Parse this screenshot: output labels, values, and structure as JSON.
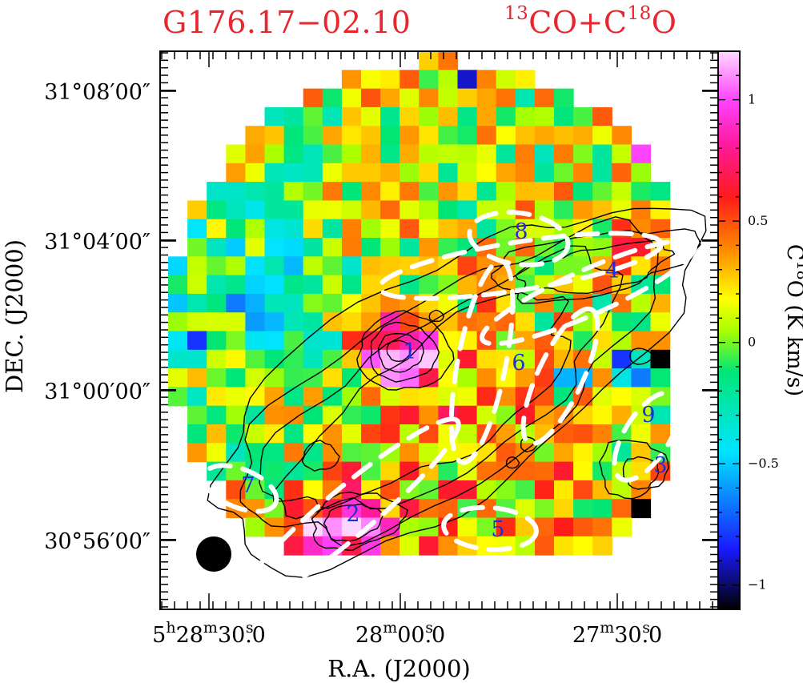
{
  "title": {
    "source": "G176.17−02.10",
    "tracer_parts": [
      "13",
      "CO+C",
      "18",
      "O"
    ]
  },
  "axes": {
    "xlabel": "R.A.  (J2000)",
    "ylabel": "DEC.  (J2000)",
    "x_ticks": [
      {
        "h": "5",
        "m": "28",
        "s": "30",
        "frac": "0",
        "show_h": true
      },
      {
        "h": "",
        "m": "28",
        "s": "00",
        "frac": "0",
        "show_h": false
      },
      {
        "h": "",
        "m": "27",
        "s": "30",
        "frac": "0",
        "show_h": false
      }
    ],
    "y_ticks": [
      "31°08′00″",
      "31°04′00″",
      "31°00′00″",
      "30°56′00″"
    ]
  },
  "colorbar": {
    "label_parts": [
      "C",
      "18",
      "O  (K km/s)"
    ],
    "ticks": [
      "1",
      "0.5",
      "0",
      "−0.5",
      "−1"
    ],
    "ticks_values": [
      1,
      0.5,
      0,
      -0.5,
      -1
    ],
    "range": [
      -1.1,
      1.2
    ],
    "stops": [
      {
        "v": -1.1,
        "c": "#000000"
      },
      {
        "v": -0.85,
        "c": "#1a1aff"
      },
      {
        "v": -0.45,
        "c": "#00e5ff"
      },
      {
        "v": -0.12,
        "c": "#00e676"
      },
      {
        "v": 0.05,
        "c": "#aaff00"
      },
      {
        "v": 0.18,
        "c": "#ffff00"
      },
      {
        "v": 0.38,
        "c": "#ff8c00"
      },
      {
        "v": 0.6,
        "c": "#ff1a1a"
      },
      {
        "v": 0.82,
        "c": "#ff1aa0"
      },
      {
        "v": 1.0,
        "c": "#ff44ff"
      },
      {
        "v": 1.2,
        "c": "#ffd8ff"
      }
    ]
  },
  "chart_data": {
    "type": "heatmap",
    "title": "G176.17−02.10    13CO+C18O",
    "xlabel": "R.A.  (J2000)",
    "ylabel": "DEC.  (J2000)",
    "x_ticks": [
      "5h28m30s.0",
      "28m00s.0",
      "27m30s.0"
    ],
    "y_ticks": [
      "31°08′00″",
      "31°04′00″",
      "31°00′00″",
      "30°56′00″"
    ],
    "colorbar_label": "C18O (K km/s)",
    "colorbar_range": [
      -1.1,
      1.2
    ],
    "colorbar_ticks": [
      1,
      0.5,
      0,
      -0.5,
      -1
    ],
    "grid_cols": 26,
    "grid_rows": 27,
    "grid_footprint": "circular",
    "peak_value": 1.15,
    "contours": "13CO integrated intensity (black)",
    "ellipses": "filament boundaries (white dashed)",
    "labels": [
      "1",
      "2",
      "3",
      "4",
      "5",
      "6",
      "7",
      "8",
      "9"
    ],
    "beam": "filled black circle, lower-left"
  },
  "colors": {
    "title": "#e8262e",
    "feature_label": "#1f2fd8",
    "contour": "#000000",
    "ellipse": "#ffffff",
    "frame": "#000000"
  }
}
